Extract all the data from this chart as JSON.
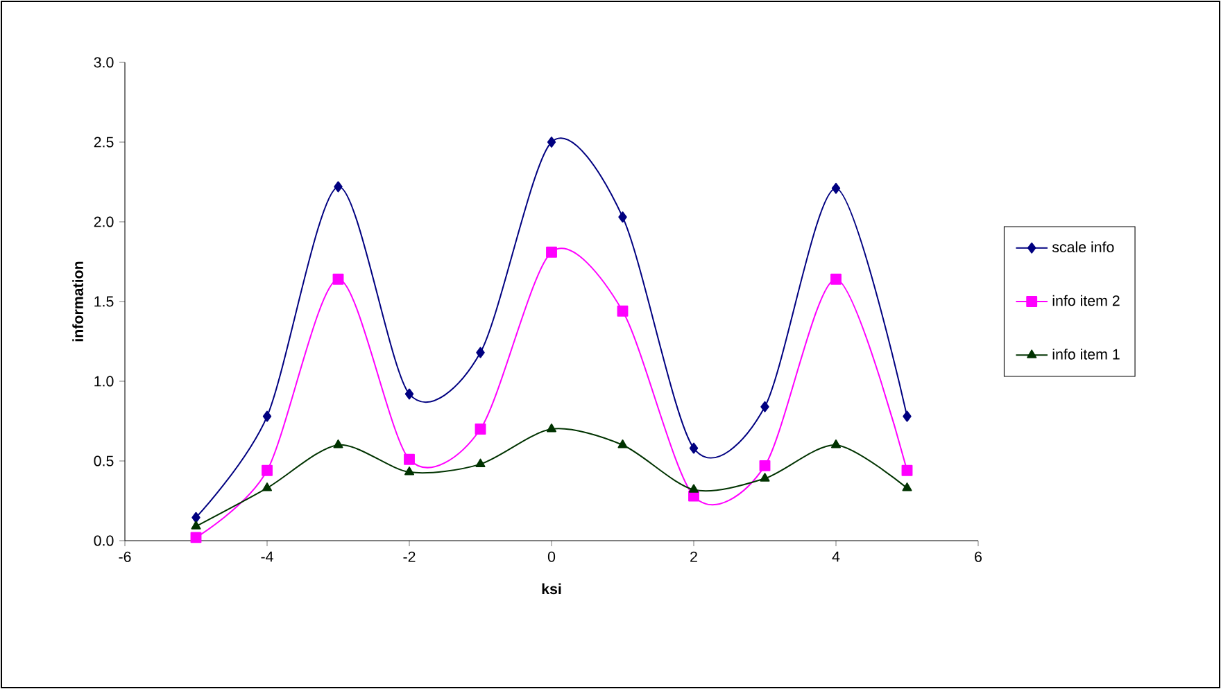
{
  "chart_data": {
    "type": "line",
    "xlabel": "ksi",
    "ylabel": "information",
    "x": [
      -5,
      -4,
      -3,
      -2,
      -1,
      0,
      1,
      2,
      3,
      4,
      5
    ],
    "series": [
      {
        "name": "scale info",
        "color": "#000080",
        "marker": "diamond",
        "values": [
          0.145,
          0.78,
          2.22,
          0.92,
          1.18,
          2.5,
          2.03,
          0.58,
          0.84,
          2.21,
          0.78
        ]
      },
      {
        "name": "info item 2",
        "color": "#ff00ff",
        "marker": "square",
        "values": [
          0.02,
          0.44,
          1.64,
          0.51,
          0.7,
          1.81,
          1.44,
          0.28,
          0.47,
          1.64,
          0.44
        ]
      },
      {
        "name": "info item 1",
        "color": "#003300",
        "marker": "triangle",
        "values": [
          0.09,
          0.33,
          0.6,
          0.43,
          0.48,
          0.7,
          0.6,
          0.32,
          0.39,
          0.6,
          0.33
        ]
      }
    ],
    "xlim": [
      -6,
      6
    ],
    "xticks": [
      -6,
      -4,
      -2,
      0,
      2,
      4,
      6
    ],
    "ylim": [
      0,
      3
    ],
    "yticks": [
      {
        "value": 0,
        "label": "0.0"
      },
      {
        "value": 0.5,
        "label": "0.5"
      },
      {
        "value": 1,
        "label": "1.0"
      },
      {
        "value": 1.5,
        "label": "1.5"
      },
      {
        "value": 2,
        "label": "2.0"
      },
      {
        "value": 2.5,
        "label": "2.5"
      },
      {
        "value": 3,
        "label": "3.0"
      }
    ],
    "grid": false,
    "legend": "right",
    "line_style": "solid"
  }
}
